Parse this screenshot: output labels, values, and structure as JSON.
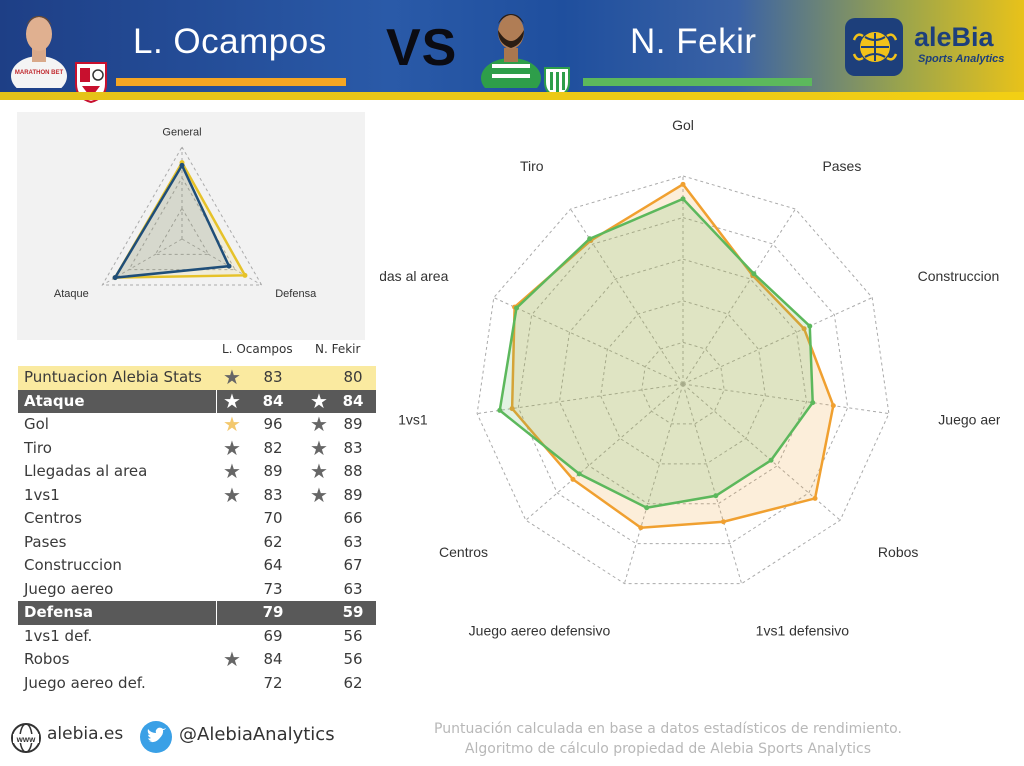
{
  "header": {
    "player1_name": "L. Ocampos",
    "vs_label": "VS",
    "player2_name": "N. Fekir",
    "player1_color": "#f5a623",
    "player2_color": "#5cb85c",
    "logo_title": "aleBia",
    "logo_subtitle": "Sports Analytics",
    "p1_shirt_text": "MARATHON BET"
  },
  "table": {
    "col1_label": "L. Ocampos",
    "col2_label": "N. Fekir",
    "rows": [
      {
        "label": "Puntuacion Alebia Stats",
        "v1": "83",
        "v2": "80",
        "star1": "grey",
        "star2": "",
        "type": "highlight"
      },
      {
        "label": "Ataque",
        "v1": "84",
        "v2": "84",
        "star1": "white",
        "star2": "white",
        "type": "section"
      },
      {
        "label": "Gol",
        "v1": "96",
        "v2": "89",
        "star1": "gold",
        "star2": "grey",
        "type": "normal"
      },
      {
        "label": "Tiro",
        "v1": "82",
        "v2": "83",
        "star1": "grey",
        "star2": "grey",
        "type": "normal"
      },
      {
        "label": "Llegadas al area",
        "v1": "89",
        "v2": "88",
        "star1": "grey",
        "star2": "grey",
        "type": "normal"
      },
      {
        "label": "1vs1",
        "v1": "83",
        "v2": "89",
        "star1": "grey",
        "star2": "grey",
        "type": "normal"
      },
      {
        "label": "Centros",
        "v1": "70",
        "v2": "66",
        "star1": "",
        "star2": "",
        "type": "normal"
      },
      {
        "label": "Pases",
        "v1": "62",
        "v2": "63",
        "star1": "",
        "star2": "",
        "type": "normal"
      },
      {
        "label": "Construccion",
        "v1": "64",
        "v2": "67",
        "star1": "",
        "star2": "",
        "type": "normal"
      },
      {
        "label": "Juego aereo",
        "v1": "73",
        "v2": "63",
        "star1": "",
        "star2": "",
        "type": "normal"
      },
      {
        "label": "Defensa",
        "v1": "79",
        "v2": "59",
        "star1": "",
        "star2": "",
        "type": "section"
      },
      {
        "label": "1vs1 def.",
        "v1": "69",
        "v2": "56",
        "star1": "",
        "star2": "",
        "type": "normal"
      },
      {
        "label": "Robos",
        "v1": "84",
        "v2": "56",
        "star1": "grey",
        "star2": "",
        "type": "normal"
      },
      {
        "label": "Juego aereo def.",
        "v1": "72",
        "v2": "62",
        "star1": "",
        "star2": "",
        "type": "normal"
      }
    ]
  },
  "chart_data": [
    {
      "type": "radar",
      "axes": [
        "General",
        "Defensa",
        "Ataque"
      ],
      "range": [
        0,
        100
      ],
      "grid_levels": 3,
      "series": [
        {
          "color": "#e6c229",
          "values": [
            83,
            79,
            84
          ]
        },
        {
          "color": "#1f4e79",
          "values": [
            80,
            59,
            84
          ]
        }
      ]
    },
    {
      "type": "radar",
      "axes": [
        "Gol",
        "Pases",
        "Construccion",
        "Juego aereo",
        "Robos",
        "1vs1 defensivo",
        "Juego aereo defensivo",
        "Centros",
        "1vs1",
        "Llegadas al area",
        "Tiro"
      ],
      "range": [
        0,
        100
      ],
      "grid_levels": 5,
      "series": [
        {
          "color": "#f0a030",
          "values": [
            96,
            62,
            64,
            73,
            84,
            69,
            72,
            70,
            83,
            89,
            82
          ]
        },
        {
          "color": "#5cb85c",
          "values": [
            89,
            63,
            67,
            63,
            56,
            56,
            62,
            66,
            89,
            88,
            83
          ]
        }
      ]
    }
  ],
  "footer": {
    "site": "alebia.es",
    "twitter": "@AlebiaAnalytics",
    "note_line1": "Puntuación calculada en base a datos estadísticos de rendimiento.",
    "note_line2": "Algoritmo de cálculo propiedad de Alebia Sports Analytics",
    "www_text": "www"
  }
}
